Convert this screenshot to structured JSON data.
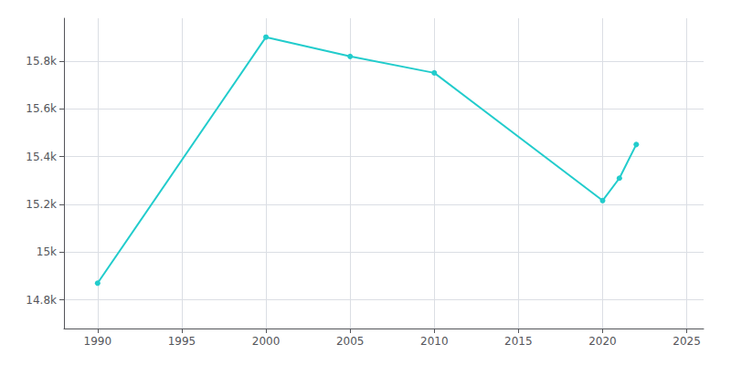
{
  "chart_data": {
    "type": "line",
    "x": [
      1990,
      2000,
      2005,
      2010,
      2020,
      2021,
      2022
    ],
    "values": [
      14870,
      15901,
      15820,
      15751,
      15216,
      15310,
      15451
    ],
    "color": "#22CCCC",
    "marker": "circle",
    "line_style": "solid",
    "xlim": [
      1988,
      2026
    ],
    "ylim": [
      14680,
      15980
    ],
    "xticks": [
      1990,
      1995,
      2000,
      2005,
      2010,
      2015,
      2020,
      2025
    ],
    "yticks": [
      {
        "value": 14800,
        "label": "14.8k"
      },
      {
        "value": 15000,
        "label": "15k"
      },
      {
        "value": 15200,
        "label": "15.2k"
      },
      {
        "value": 15400,
        "label": "15.4k"
      },
      {
        "value": 15600,
        "label": "15.6k"
      },
      {
        "value": 15800,
        "label": "15.8k"
      }
    ],
    "grid": true
  }
}
